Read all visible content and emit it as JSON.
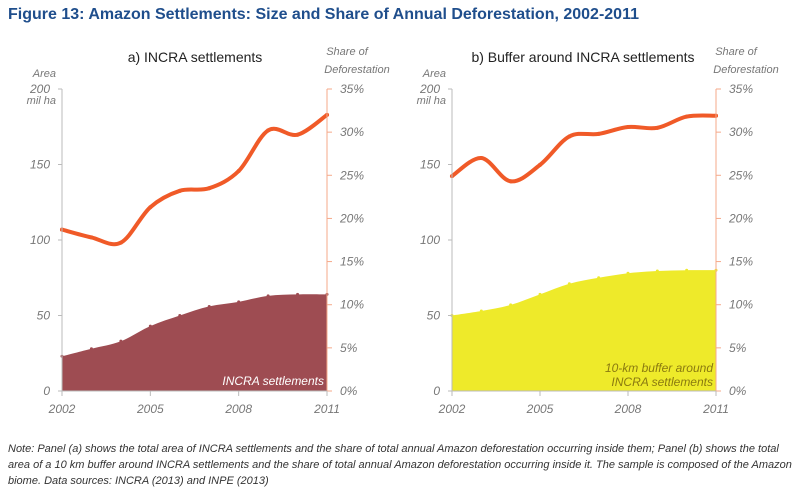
{
  "figure": {
    "title": "Figure 13: Amazon Settlements: Size and Share of Annual Deforestation, 2002-2011",
    "note": "Note: Panel (a) shows the total area of INCRA settlements and the share of total annual Amazon deforestation occurring inside them; Panel (b) shows the total area of a 10 km buffer around INCRA settlements and the share of total annual Amazon deforestation occurring inside it. The sample is composed of the Amazon biome. Data sources: INCRA (2013) and INPE (2013)"
  },
  "chart_data": [
    {
      "type": "area",
      "title": "a) INCRA settlements",
      "left_axis_label": "Area",
      "left_axis_unit": "mil ha",
      "right_axis_label_line1": "Share of",
      "right_axis_label_line2": "Deforestation",
      "left_ylim": [
        0,
        200
      ],
      "left_ticks": [
        "0",
        "50",
        "100",
        "150",
        "200"
      ],
      "right_ylim": [
        0,
        35
      ],
      "right_ticks": [
        "0%",
        "5%",
        "10%",
        "15%",
        "20%",
        "25%",
        "30%",
        "35%"
      ],
      "x_ticks": [
        "2002",
        "2005",
        "2008",
        "2011"
      ],
      "x": [
        2002,
        2003,
        2004,
        2005,
        2006,
        2007,
        2008,
        2009,
        2010,
        2011
      ],
      "series": [
        {
          "name": "INCRA settlements",
          "kind": "area",
          "axis": "left",
          "color": "#9e4c52",
          "values": [
            23,
            28,
            33,
            43,
            50,
            56,
            59,
            63,
            64,
            64
          ]
        },
        {
          "kind": "line",
          "axis": "right",
          "color": "#f05a28",
          "values": [
            18.7,
            17.8,
            17.2,
            21.3,
            23.2,
            23.5,
            25.5,
            30.2,
            29.7,
            32.0
          ]
        }
      ],
      "area_label": "INCRA settlements"
    },
    {
      "type": "area",
      "title": "b) Buffer around INCRA settlements",
      "left_axis_label": "Area",
      "left_axis_unit": "mil ha",
      "right_axis_label_line1": "Share of",
      "right_axis_label_line2": "Deforestation",
      "left_ylim": [
        0,
        200
      ],
      "left_ticks": [
        "0",
        "50",
        "100",
        "150",
        "200"
      ],
      "right_ylim": [
        0,
        35
      ],
      "right_ticks": [
        "0%",
        "5%",
        "10%",
        "15%",
        "20%",
        "25%",
        "30%",
        "35%"
      ],
      "x_ticks": [
        "2002",
        "2005",
        "2008",
        "2011"
      ],
      "x": [
        2002,
        2003,
        2004,
        2005,
        2006,
        2007,
        2008,
        2009,
        2010,
        2011
      ],
      "series": [
        {
          "name": "10-km buffer around INCRA settlements",
          "kind": "area",
          "axis": "left",
          "color": "#eeea2a",
          "values": [
            50,
            53,
            57,
            64,
            71,
            75,
            78,
            79.5,
            80,
            80
          ]
        },
        {
          "kind": "line",
          "axis": "right",
          "color": "#f05a28",
          "values": [
            24.9,
            27.0,
            24.3,
            26.2,
            29.5,
            29.8,
            30.6,
            30.5,
            31.8,
            31.9
          ]
        }
      ],
      "area_label_line1": "10-km buffer around",
      "area_label_line2": "INCRA settlements"
    }
  ]
}
